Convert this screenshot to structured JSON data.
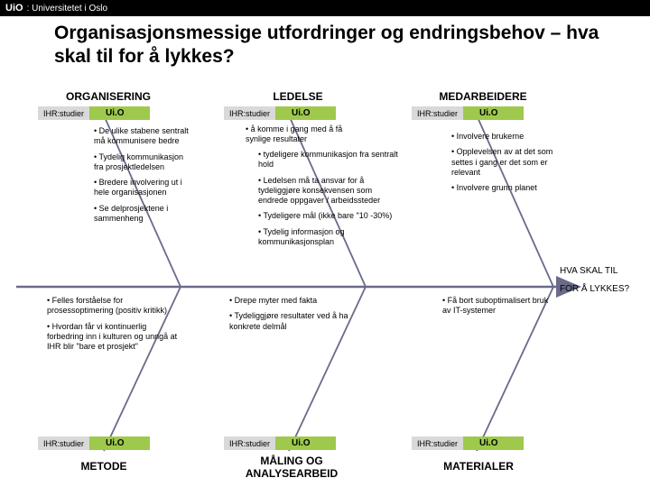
{
  "logo": {
    "short": "UiO",
    "sep": ":",
    "full": "Universitetet i Oslo"
  },
  "title": "Organisasjonsmessige utfordringer og endringsbehov – hva skal til for å lykkes?",
  "categories": {
    "top": [
      "ORGANISERING",
      "LEDELSE",
      "MEDARBEIDERE"
    ],
    "bottom": [
      "METODE",
      "MÅLING OG ANALYSEARBEID",
      "MATERIALER"
    ]
  },
  "tag": {
    "left": "IHR:studier",
    "right": "Ui.O"
  },
  "goal": {
    "line1": "HVA SKAL TIL",
    "line2": "FOR Å LYKKES?"
  },
  "bullets": {
    "org1": [
      "De ulike stabene sentralt må kommunisere bedre",
      "Tydelig kommunikasjon fra prosjektledelsen",
      "Bredere involvering ut i hele organisasjonen",
      "Se delprosjektene i sammenheng"
    ],
    "org2": [
      "Felles forståelse for prosessoptimering (positiv kritikk)",
      "Hvordan  får vi kontinuerlig forbedring inn i kulturen og unngå at IHR blir \"bare et prosjekt\""
    ],
    "led1": [
      "å komme i gang med å få synlige resultater"
    ],
    "led2": [
      "tydeligere kommunikasjon fra sentralt hold",
      "Ledelsen må ta ansvar for å tydeliggjøre konsekvensen som endrede oppgaver / arbeidssteder",
      "Tydeligere mål (ikke bare \"10 -30%)",
      "Tydelig informasjon og kommunikasjonsplan"
    ],
    "led3": [
      "Drepe myter med fakta",
      "Tydeliggjøre resultater ved å ha konkrete delmål"
    ],
    "med": [
      "Involvere brukerne",
      "Opplevelsen av at det som settes i gang er det som er relevant",
      "Involvere grunn planet"
    ],
    "mat": [
      "Få bort suboptimalisert bruk av IT-systemer"
    ]
  },
  "colors": {
    "spine": "#6a6a8a",
    "tag_left_bg": "#d9d9d9",
    "tag_right_bg": "#9ec94d"
  }
}
